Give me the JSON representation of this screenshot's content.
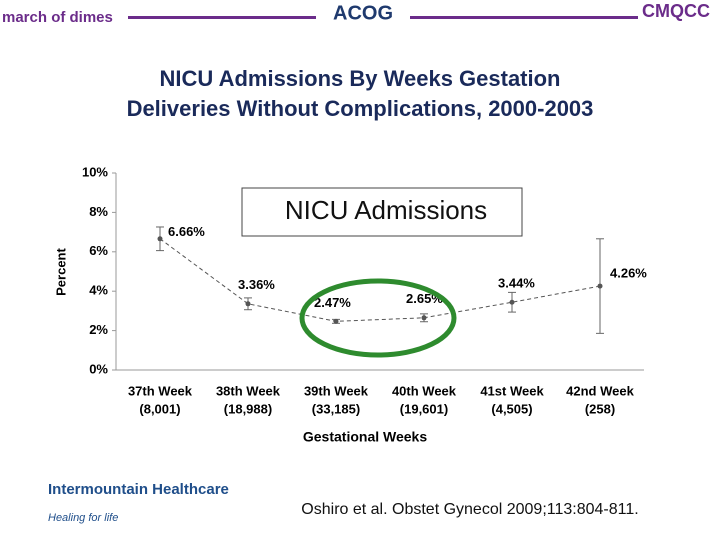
{
  "header": {
    "logo_left": "march of dimes",
    "logo_center": "ACOG",
    "logo_right": "CMQCC"
  },
  "chart_data": {
    "type": "line",
    "title": [
      "NICU Admissions By Weeks Gestation",
      "Deliveries Without Complications, 2000-2003"
    ],
    "annotation": "NICU Admissions",
    "xlabel": "Gestational Weeks",
    "ylabel": "Percent",
    "categories": [
      "37th Week",
      "38th Week",
      "39th Week",
      "40th Week",
      "41st Week",
      "42nd Week"
    ],
    "category_counts": [
      "(8,001)",
      "(18,988)",
      "(33,185)",
      "(19,601)",
      "(4,505)",
      "(258)"
    ],
    "values": [
      6.66,
      3.36,
      2.47,
      2.65,
      3.44,
      4.26
    ],
    "value_labels": [
      "6.66%",
      "3.36%",
      "2.47%",
      "2.65%",
      "3.44%",
      "4.26%"
    ],
    "errors": [
      0.6,
      0.3,
      0.1,
      0.2,
      0.5,
      2.4
    ],
    "color": "#555555",
    "ylim": [
      0,
      10
    ],
    "yticks": [
      {
        "value": 0,
        "label": "0%"
      },
      {
        "value": 2,
        "label": "2%"
      },
      {
        "value": 4,
        "label": "4%"
      },
      {
        "value": 6,
        "label": "6%"
      },
      {
        "value": 8,
        "label": "8%"
      },
      {
        "value": 10,
        "label": "10%"
      }
    ]
  },
  "footer": {
    "logo": "Intermountain Healthcare",
    "tagline": "Healing for life",
    "citation": "Oshiro et al. Obstet Gynecol 2009;113:804-811."
  }
}
